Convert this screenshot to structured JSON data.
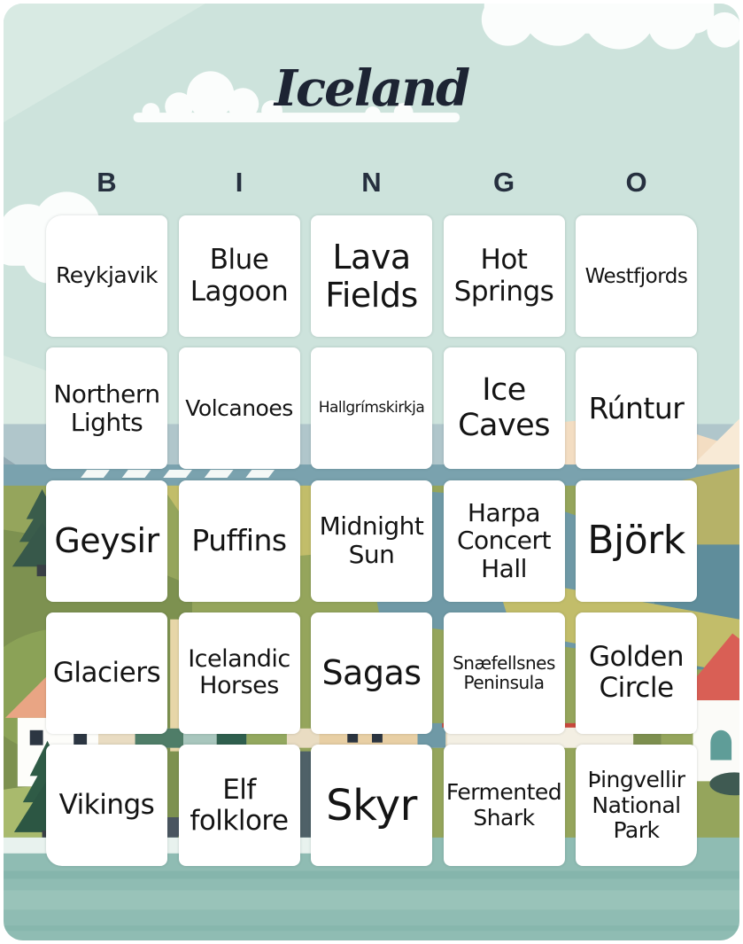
{
  "page": {
    "title": "Iceland",
    "bingo_letters": [
      "B",
      "I",
      "N",
      "G",
      "O"
    ]
  },
  "grid": {
    "rows": 5,
    "cols": 5,
    "cells": [
      {
        "label": "Reykjavik",
        "size": 25
      },
      {
        "label": "Blue Lagoon",
        "size": 31
      },
      {
        "label": "Lava Fields",
        "size": 38
      },
      {
        "label": "Hot Springs",
        "size": 31
      },
      {
        "label": "Westfjords",
        "size": 23
      },
      {
        "label": "Northern Lights",
        "size": 28
      },
      {
        "label": "Volcanoes",
        "size": 25
      },
      {
        "label": "Hallgrímskirkja",
        "size": 17
      },
      {
        "label": "Ice Caves",
        "size": 35
      },
      {
        "label": "Rúntur",
        "size": 33
      },
      {
        "label": "Geysir",
        "size": 38
      },
      {
        "label": "Puffins",
        "size": 33
      },
      {
        "label": "Midnight Sun",
        "size": 28
      },
      {
        "label": "Harpa Concert Hall",
        "size": 28
      },
      {
        "label": "Björk",
        "size": 44
      },
      {
        "label": "Glaciers",
        "size": 31
      },
      {
        "label": "Icelandic Horses",
        "size": 27
      },
      {
        "label": "Sagas",
        "size": 38
      },
      {
        "label": "Snæfellsnes Peninsula",
        "size": 20
      },
      {
        "label": "Golden Circle",
        "size": 31
      },
      {
        "label": "Vikings",
        "size": 31
      },
      {
        "label": "Elf folklore",
        "size": 31
      },
      {
        "label": "Skyr",
        "size": 48
      },
      {
        "label": "Fermented Shark",
        "size": 25
      },
      {
        "label": "Þingvellir National Park",
        "size": 25
      }
    ]
  },
  "colors": {
    "sky_mint": "#cde3dc",
    "card_frame": "#ffffff",
    "cell_background": "#ffffff",
    "title_text": "#1d2433",
    "bingo_letter_text": "#26303f",
    "cell_text": "#141414",
    "water_teal": "#8fbcb3",
    "hill_green": "#7d9150",
    "field_olive": "#c2bd6a",
    "field_teal": "#6f99a6",
    "pine_green": "#3a5c4b",
    "roof_red": "#d95f55",
    "roof_peach": "#e9a584",
    "mountain_blue": "#93aab3"
  },
  "background_elements": [
    "cloud",
    "mountains",
    "road",
    "fields",
    "village",
    "house",
    "pine-tree",
    "water"
  ]
}
